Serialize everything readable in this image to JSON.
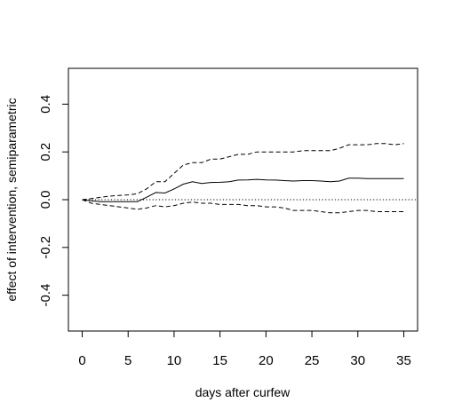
{
  "chart_data": {
    "type": "line",
    "title": "",
    "xlabel": "days after curfew",
    "ylabel": "effect of intervention, semiparametric",
    "xlim": [
      -1.5,
      36.5
    ],
    "ylim": [
      -0.55,
      0.55
    ],
    "x_ticks": [
      0,
      5,
      10,
      15,
      20,
      25,
      30,
      35
    ],
    "y_ticks": [
      -0.4,
      -0.2,
      0.0,
      0.2,
      0.4
    ],
    "x_tick_labels": [
      "0",
      "5",
      "10",
      "15",
      "20",
      "25",
      "30",
      "35"
    ],
    "y_tick_labels": [
      "-0.4",
      "-0.2",
      "0.0",
      "0.2",
      "0.4"
    ],
    "grid": false,
    "reference_line": {
      "y": 0,
      "style": "dotted"
    },
    "series": [
      {
        "style": "solid",
        "x": [
          0,
          1,
          2,
          3,
          4,
          5,
          6,
          7,
          8,
          9,
          10,
          11,
          12,
          13,
          14,
          15,
          16,
          17,
          18,
          19,
          20,
          21,
          22,
          23,
          24,
          25,
          26,
          27,
          28,
          29,
          30,
          31,
          32,
          33,
          34,
          35
        ],
        "y": [
          0.0,
          -0.005,
          -0.008,
          -0.008,
          -0.008,
          -0.008,
          -0.008,
          0.01,
          0.03,
          0.028,
          0.045,
          0.065,
          0.075,
          0.068,
          0.072,
          0.073,
          0.075,
          0.082,
          0.083,
          0.085,
          0.083,
          0.082,
          0.08,
          0.078,
          0.08,
          0.08,
          0.078,
          0.075,
          0.078,
          0.09,
          0.09,
          0.088,
          0.088,
          0.088,
          0.088,
          0.088
        ]
      },
      {
        "style": "dashed",
        "x": [
          0,
          1,
          2,
          3,
          4,
          5,
          6,
          7,
          8,
          9,
          10,
          11,
          12,
          13,
          14,
          15,
          16,
          17,
          18,
          19,
          20,
          21,
          22,
          23,
          24,
          25,
          26,
          27,
          28,
          29,
          30,
          31,
          32,
          33,
          34,
          35
        ],
        "y": [
          0.0,
          0.005,
          0.01,
          0.015,
          0.018,
          0.02,
          0.025,
          0.045,
          0.075,
          0.075,
          0.11,
          0.145,
          0.155,
          0.155,
          0.17,
          0.17,
          0.18,
          0.19,
          0.19,
          0.2,
          0.2,
          0.2,
          0.2,
          0.2,
          0.205,
          0.205,
          0.205,
          0.205,
          0.215,
          0.23,
          0.23,
          0.23,
          0.235,
          0.235,
          0.23,
          0.235
        ]
      },
      {
        "style": "dashed",
        "x": [
          0,
          1,
          2,
          3,
          4,
          5,
          6,
          7,
          8,
          9,
          10,
          11,
          12,
          13,
          14,
          15,
          16,
          17,
          18,
          19,
          20,
          21,
          22,
          23,
          24,
          25,
          26,
          27,
          28,
          29,
          30,
          31,
          32,
          33,
          34,
          35
        ],
        "y": [
          0.0,
          -0.015,
          -0.02,
          -0.025,
          -0.03,
          -0.035,
          -0.04,
          -0.035,
          -0.025,
          -0.03,
          -0.025,
          -0.015,
          -0.01,
          -0.015,
          -0.015,
          -0.02,
          -0.02,
          -0.02,
          -0.025,
          -0.025,
          -0.03,
          -0.03,
          -0.035,
          -0.045,
          -0.045,
          -0.045,
          -0.05,
          -0.055,
          -0.055,
          -0.05,
          -0.045,
          -0.045,
          -0.05,
          -0.05,
          -0.05,
          -0.05
        ]
      }
    ]
  }
}
